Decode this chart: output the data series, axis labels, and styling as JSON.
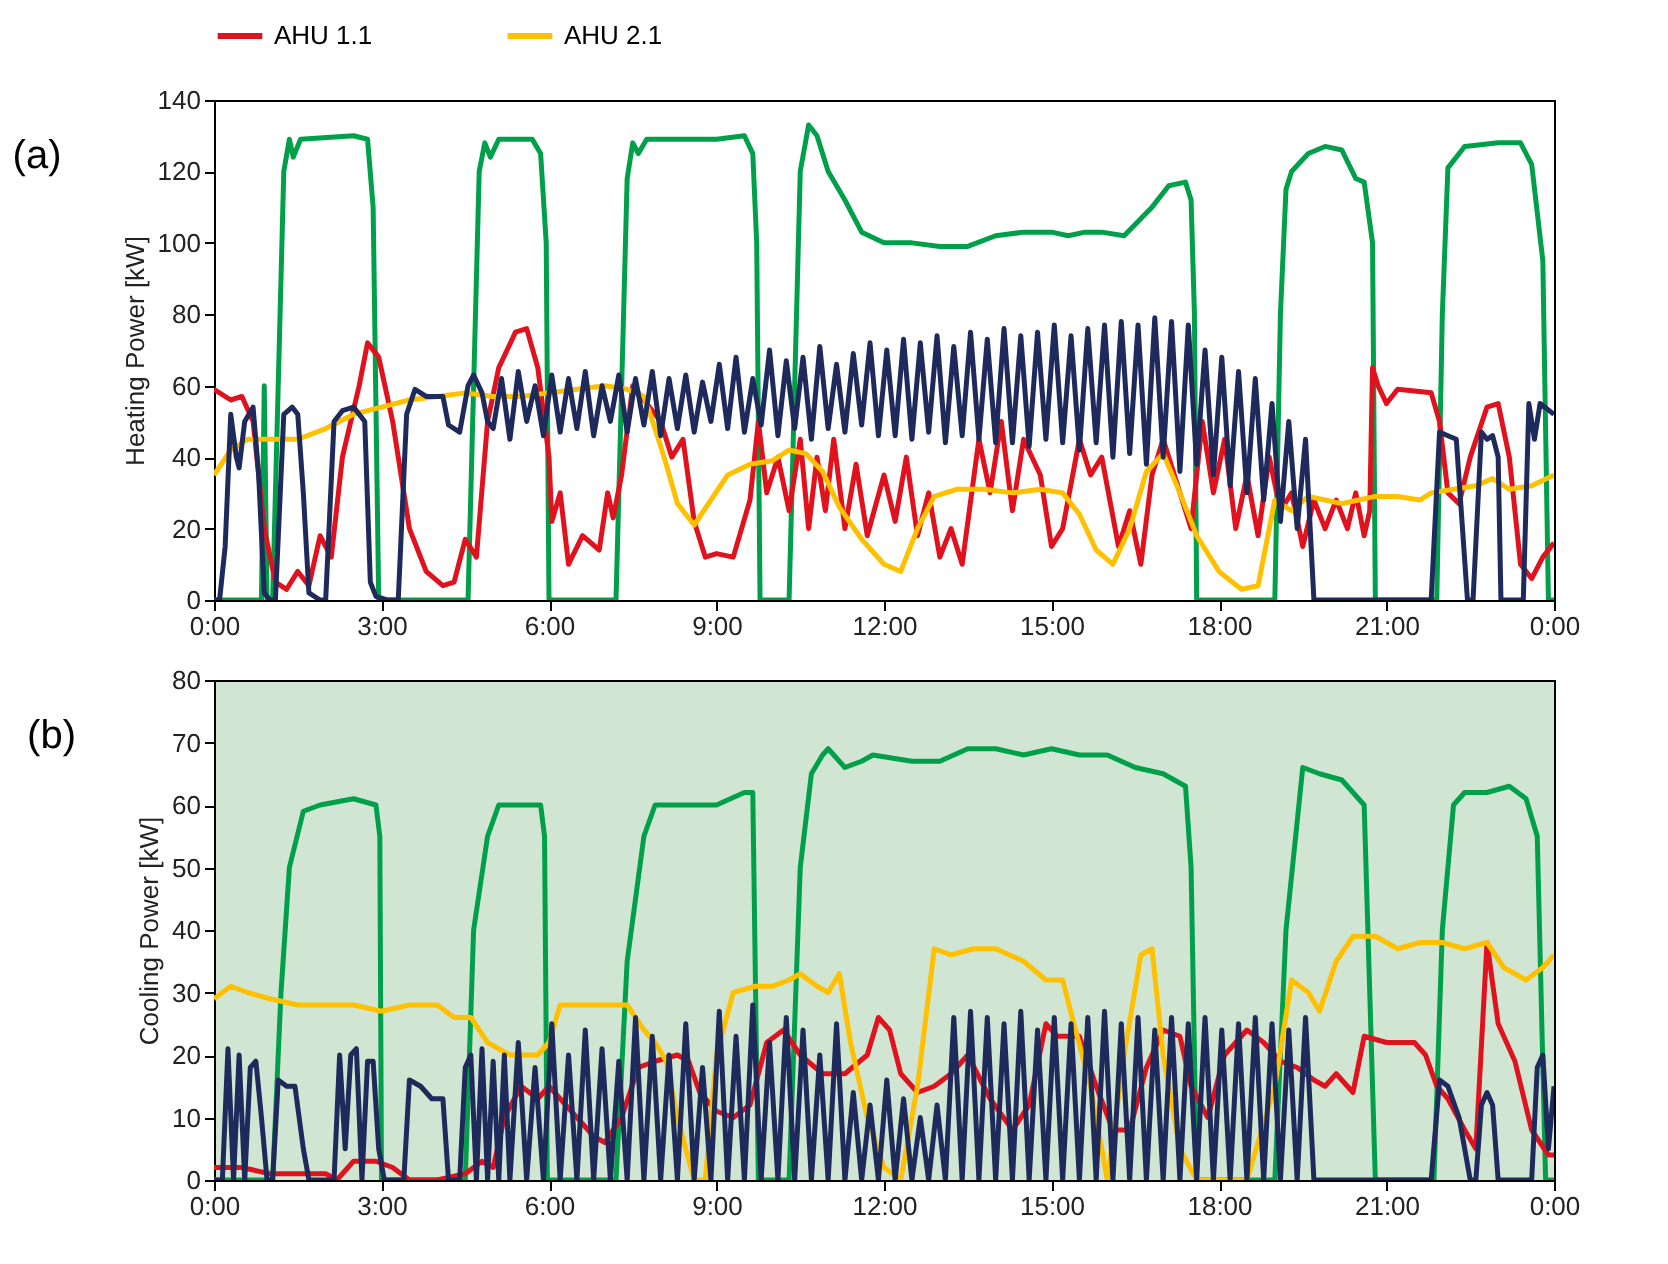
{
  "chart_data": [
    {
      "type": "line",
      "title": "(a)",
      "ylabel": "Heating Power [kW]",
      "legend": "top",
      "grid": false,
      "xlim": [
        0,
        24
      ],
      "ylim": [
        0,
        140
      ],
      "yticks": [
        0,
        20,
        40,
        60,
        80,
        100,
        120,
        140
      ],
      "xticks": [
        {
          "value": 0,
          "label": "0:00"
        },
        {
          "value": 3,
          "label": "3:00"
        },
        {
          "value": 6,
          "label": "6:00"
        },
        {
          "value": 9,
          "label": "9:00"
        },
        {
          "value": 12,
          "label": "12:00"
        },
        {
          "value": 15,
          "label": "15:00"
        },
        {
          "value": 18,
          "label": "18:00"
        },
        {
          "value": 21,
          "label": "21:00"
        },
        {
          "value": 24,
          "label": "0:00"
        }
      ],
      "series": [
        {
          "color": "#00a04a",
          "x": [
            0,
            0.85,
            0.9,
            0.95,
            1.05,
            1.25,
            1.35,
            1.42,
            1.55,
            2.5,
            2.75,
            2.85,
            2.95,
            4.55,
            4.75,
            4.85,
            4.95,
            5.1,
            5.7,
            5.85,
            5.95,
            6.0,
            7.2,
            7.4,
            7.5,
            7.6,
            7.75,
            9.0,
            9.5,
            9.65,
            9.72,
            9.78,
            10.3,
            10.5,
            10.65,
            10.8,
            11.0,
            11.3,
            11.6,
            12.0,
            12.5,
            13.0,
            13.5,
            14.0,
            14.5,
            15.0,
            15.3,
            15.6,
            15.9,
            16.3,
            16.8,
            17.1,
            17.4,
            17.5,
            17.56,
            17.6,
            19.0,
            19.1,
            19.2,
            19.3,
            19.6,
            19.9,
            20.2,
            20.45,
            20.6,
            20.75,
            20.8,
            21.9,
            22.0,
            22.1,
            22.4,
            23.0,
            23.4,
            23.6,
            23.8,
            23.9,
            24
          ],
          "values": [
            0,
            0,
            60,
            0,
            0,
            120,
            129,
            124,
            129,
            130,
            129,
            110,
            0,
            0,
            120,
            128,
            124,
            129,
            129,
            125,
            100,
            0,
            0,
            118,
            128,
            125,
            129,
            129,
            130,
            125,
            100,
            0,
            0,
            120,
            133,
            130,
            120,
            112,
            103,
            100,
            100,
            99,
            99,
            102,
            103,
            103,
            102,
            103,
            103,
            102,
            110,
            116,
            117,
            112,
            80,
            0,
            0,
            80,
            115,
            120,
            125,
            127,
            126,
            118,
            117,
            100,
            0,
            0,
            80,
            121,
            127,
            128,
            128,
            122,
            95,
            0,
            0
          ]
        },
        {
          "name": "AHU 1.1",
          "color": "#e0121e",
          "x": [
            0,
            0.3,
            0.5,
            0.7,
            0.9,
            1.1,
            1.3,
            1.5,
            1.7,
            1.9,
            2.1,
            2.3,
            2.6,
            2.75,
            2.95,
            3.2,
            3.5,
            3.8,
            4.1,
            4.3,
            4.5,
            4.7,
            4.9,
            5.1,
            5.4,
            5.6,
            5.8,
            6.0,
            6.05,
            6.2,
            6.35,
            6.6,
            6.9,
            7.05,
            7.15,
            7.3,
            7.5,
            7.75,
            8.0,
            8.2,
            8.4,
            8.6,
            8.8,
            9.0,
            9.3,
            9.6,
            9.75,
            9.9,
            10.1,
            10.3,
            10.5,
            10.65,
            10.8,
            10.95,
            11.1,
            11.3,
            11.5,
            11.7,
            12.0,
            12.2,
            12.4,
            12.6,
            12.8,
            13.0,
            13.2,
            13.4,
            13.7,
            13.9,
            14.1,
            14.3,
            14.5,
            14.8,
            15.0,
            15.2,
            15.5,
            15.7,
            15.9,
            16.2,
            16.4,
            16.6,
            16.8,
            17.0,
            17.2,
            17.5,
            17.7,
            17.9,
            18.1,
            18.3,
            18.5,
            18.7,
            18.9,
            19.1,
            19.3,
            19.5,
            19.7,
            19.9,
            20.1,
            20.3,
            20.45,
            20.6,
            20.7,
            20.75,
            20.85,
            21.0,
            21.2,
            21.8,
            21.95,
            22.1,
            22.3,
            22.5,
            22.8,
            23.0,
            23.2,
            23.4,
            23.6,
            23.8,
            24
          ],
          "values": [
            59,
            56,
            57,
            50,
            20,
            5,
            3,
            8,
            4,
            18,
            12,
            40,
            60,
            72,
            68,
            50,
            20,
            8,
            4,
            5,
            17,
            12,
            50,
            65,
            75,
            76,
            65,
            40,
            22,
            30,
            10,
            18,
            14,
            30,
            23,
            35,
            60,
            55,
            50,
            40,
            45,
            22,
            12,
            13,
            12,
            28,
            50,
            30,
            40,
            25,
            45,
            20,
            40,
            25,
            45,
            20,
            38,
            18,
            35,
            22,
            40,
            18,
            30,
            12,
            20,
            10,
            45,
            30,
            50,
            25,
            45,
            35,
            15,
            20,
            45,
            35,
            40,
            15,
            25,
            10,
            35,
            45,
            35,
            20,
            50,
            30,
            45,
            20,
            35,
            18,
            40,
            25,
            30,
            15,
            28,
            20,
            28,
            20,
            30,
            18,
            25,
            65,
            60,
            55,
            59,
            58,
            50,
            30,
            27,
            40,
            54,
            55,
            40,
            10,
            6,
            12,
            16
          ]
        },
        {
          "name": "AHU 2.1",
          "color": "#ffc000",
          "x": [
            0,
            0.3,
            0.6,
            1.0,
            1.5,
            2.0,
            2.5,
            3.0,
            3.5,
            4.0,
            4.5,
            5.0,
            5.5,
            6.0,
            6.5,
            7.0,
            7.4,
            7.7,
            7.9,
            8.1,
            8.3,
            8.6,
            8.9,
            9.2,
            9.6,
            10.0,
            10.3,
            10.6,
            10.9,
            11.2,
            11.6,
            12.0,
            12.3,
            12.6,
            12.9,
            13.3,
            13.8,
            14.3,
            14.8,
            15.2,
            15.5,
            15.8,
            16.1,
            16.4,
            16.7,
            17.0,
            17.3,
            17.6,
            18.0,
            18.4,
            18.7,
            19.0,
            19.3,
            19.6,
            19.9,
            20.2,
            20.5,
            20.8,
            21.2,
            21.6,
            21.8,
            22.2,
            22.6,
            22.9,
            23.2,
            23.6,
            24
          ],
          "values": [
            35,
            42,
            45,
            45,
            45,
            48,
            52,
            54,
            56,
            57,
            58,
            57,
            57,
            58,
            59,
            60,
            59,
            57,
            48,
            38,
            27,
            21,
            28,
            35,
            38,
            39,
            42,
            41,
            36,
            26,
            17,
            10,
            8,
            20,
            29,
            31,
            31,
            30,
            31,
            30,
            24,
            14,
            10,
            20,
            36,
            41,
            30,
            18,
            8,
            3,
            4,
            28,
            25,
            29,
            28,
            27,
            28,
            29,
            29,
            28,
            30,
            31,
            32,
            34,
            31,
            32,
            35
          ]
        },
        {
          "color": "#1f2a5c",
          "x": [
            0,
            0.1,
            0.2,
            0.3,
            0.4,
            0.45,
            0.55,
            0.7,
            0.8,
            0.9,
            1.0,
            1.1,
            1.25,
            1.4,
            1.5,
            1.6,
            1.7,
            1.9,
            2.0,
            2.15,
            2.3,
            2.5,
            2.7,
            2.8,
            2.9,
            3.1,
            3.3,
            3.45,
            3.6,
            3.8,
            4.1,
            4.2,
            4.4,
            4.55,
            4.65,
            4.8,
            4.9,
            5.0,
            5.15,
            5.3,
            5.45,
            5.6,
            5.75,
            5.9,
            6.05,
            6.2,
            6.35,
            6.5,
            6.65,
            6.8,
            6.95,
            7.1,
            7.25,
            7.4,
            7.55,
            7.7,
            7.85,
            8.0,
            8.15,
            8.3,
            8.45,
            8.6,
            8.75,
            8.9,
            9.05,
            9.2,
            9.35,
            9.5,
            9.65,
            9.8,
            9.95,
            10.1,
            10.25,
            10.4,
            10.55,
            10.7,
            10.85,
            11.0,
            11.15,
            11.3,
            11.45,
            11.6,
            11.75,
            11.9,
            12.05,
            12.2,
            12.35,
            12.5,
            12.65,
            12.8,
            12.95,
            13.1,
            13.25,
            13.4,
            13.55,
            13.7,
            13.85,
            14.0,
            14.15,
            14.3,
            14.45,
            14.6,
            14.75,
            14.9,
            15.05,
            15.2,
            15.35,
            15.5,
            15.65,
            15.8,
            15.95,
            16.1,
            16.25,
            16.4,
            16.55,
            16.7,
            16.85,
            17.0,
            17.15,
            17.3,
            17.45,
            17.6,
            17.75,
            17.9,
            18.05,
            18.2,
            18.35,
            18.5,
            18.65,
            18.8,
            18.95,
            19.1,
            19.25,
            19.4,
            19.55,
            19.7,
            21.8,
            21.95,
            22.1,
            22.25,
            22.45,
            22.55,
            22.7,
            22.8,
            22.9,
            23.0,
            23.05,
            23.45,
            23.55,
            23.65,
            23.75,
            24
          ],
          "values": [
            0,
            0,
            15,
            52,
            40,
            37,
            50,
            54,
            35,
            2,
            0,
            0,
            52,
            54,
            52,
            30,
            2,
            0,
            0,
            50,
            53,
            54,
            50,
            5,
            1,
            0,
            0,
            52,
            59,
            57,
            57,
            49,
            47,
            60,
            63,
            58,
            50,
            48,
            62,
            45,
            64,
            50,
            60,
            46,
            63,
            47,
            62,
            48,
            64,
            46,
            60,
            50,
            63,
            47,
            62,
            49,
            64,
            46,
            62,
            48,
            63,
            47,
            61,
            50,
            66,
            48,
            68,
            47,
            62,
            49,
            70,
            46,
            67,
            48,
            68,
            45,
            71,
            48,
            66,
            47,
            69,
            49,
            72,
            46,
            70,
            46,
            73,
            45,
            72,
            47,
            74,
            44,
            71,
            46,
            75,
            45,
            73,
            44,
            76,
            44,
            74,
            43,
            75,
            45,
            77,
            44,
            74,
            42,
            76,
            44,
            77,
            40,
            78,
            41,
            77,
            38,
            79,
            40,
            78,
            36,
            77,
            38,
            70,
            35,
            68,
            32,
            64,
            30,
            62,
            28,
            55,
            22,
            50,
            20,
            45,
            0,
            0,
            47,
            46,
            45,
            0,
            0,
            47,
            45,
            46,
            40,
            0,
            0,
            55,
            45,
            55,
            52
          ]
        }
      ]
    },
    {
      "type": "line",
      "title": "(b)",
      "ylabel": "Cooling Power [kW]",
      "grid": false,
      "xlim": [
        0,
        24
      ],
      "ylim": [
        0,
        80
      ],
      "yticks": [
        0,
        10,
        20,
        30,
        40,
        50,
        60,
        70,
        80
      ],
      "xticks": [
        {
          "value": 0,
          "label": "0:00"
        },
        {
          "value": 3,
          "label": "3:00"
        },
        {
          "value": 6,
          "label": "6:00"
        },
        {
          "value": 9,
          "label": "9:00"
        },
        {
          "value": 12,
          "label": "12:00"
        },
        {
          "value": 15,
          "label": "15:00"
        },
        {
          "value": 18,
          "label": "18:00"
        },
        {
          "value": 21,
          "label": "21:00"
        },
        {
          "value": 24,
          "label": "0:00"
        }
      ],
      "series": [
        {
          "color": "#00a04a",
          "x": [
            0,
            1.05,
            1.2,
            1.35,
            1.6,
            1.9,
            2.5,
            2.9,
            2.97,
            3.0,
            4.5,
            4.65,
            4.9,
            5.1,
            5.5,
            5.85,
            5.92,
            5.97,
            7.2,
            7.4,
            7.7,
            7.9,
            8.5,
            9.0,
            9.5,
            9.65,
            9.7,
            9.75,
            10.3,
            10.5,
            10.7,
            10.9,
            11.0,
            11.3,
            11.6,
            11.8,
            12.5,
            13.0,
            13.5,
            14.0,
            14.5,
            15.0,
            15.5,
            16.0,
            16.5,
            17.0,
            17.4,
            17.5,
            17.6,
            19.0,
            19.2,
            19.5,
            19.8,
            20.2,
            20.6,
            20.7,
            20.8,
            21.85,
            22.0,
            22.2,
            22.4,
            22.8,
            23.2,
            23.5,
            23.7,
            23.85,
            24
          ],
          "values": [
            0,
            0,
            30,
            50,
            59,
            60,
            61,
            60,
            55,
            0,
            0,
            40,
            55,
            60,
            60,
            60,
            55,
            0,
            0,
            35,
            55,
            60,
            60,
            60,
            62,
            62,
            30,
            0,
            0,
            50,
            65,
            68,
            69,
            66,
            67,
            68,
            67,
            67,
            69,
            69,
            68,
            69,
            68,
            68,
            66,
            65,
            63,
            50,
            0,
            0,
            40,
            66,
            65,
            64,
            60,
            30,
            0,
            0,
            40,
            60,
            62,
            62,
            63,
            61,
            55,
            0,
            0
          ]
        },
        {
          "name": "AHU 1.1",
          "color": "#e0121e",
          "x": [
            0,
            0.5,
            1.0,
            1.5,
            2.0,
            2.2,
            2.5,
            2.9,
            3.2,
            3.5,
            4.0,
            4.5,
            4.8,
            5.0,
            5.2,
            5.5,
            5.8,
            6.0,
            6.5,
            6.8,
            7.0,
            7.3,
            7.6,
            7.9,
            8.3,
            8.5,
            8.7,
            9.0,
            9.3,
            9.6,
            9.9,
            10.2,
            10.5,
            10.9,
            11.3,
            11.7,
            11.9,
            12.1,
            12.3,
            12.6,
            12.9,
            13.2,
            13.5,
            13.9,
            14.3,
            14.6,
            14.9,
            15.1,
            15.5,
            15.8,
            16.1,
            16.4,
            16.7,
            17.0,
            17.3,
            17.5,
            17.8,
            18.1,
            18.5,
            18.8,
            19.1,
            19.4,
            19.7,
            19.9,
            20.1,
            20.4,
            20.6,
            21.0,
            21.5,
            21.7,
            21.9,
            22.1,
            22.4,
            22.6,
            22.8,
            23.0,
            23.3,
            23.6,
            23.9,
            24
          ],
          "values": [
            2,
            2,
            1,
            1,
            1,
            0,
            3,
            3,
            2,
            0,
            0,
            1,
            3,
            2,
            10,
            15,
            13,
            15,
            10,
            7,
            6,
            10,
            18,
            19,
            20,
            19,
            14,
            11,
            10,
            12,
            22,
            24,
            20,
            17,
            17,
            20,
            26,
            24,
            17,
            14,
            15,
            17,
            20,
            13,
            8,
            12,
            25,
            23,
            23,
            15,
            8,
            8,
            18,
            24,
            23,
            15,
            10,
            20,
            24,
            22,
            19,
            18,
            16,
            15,
            17,
            14,
            23,
            22,
            22,
            20,
            15,
            13,
            8,
            5,
            38,
            25,
            19,
            8,
            4,
            4
          ]
        },
        {
          "name": "AHU 2.1",
          "color": "#ffc000",
          "x": [
            0,
            0.3,
            0.6,
            1.0,
            1.5,
            2.0,
            2.5,
            3.0,
            3.5,
            4.0,
            4.3,
            4.6,
            4.9,
            5.3,
            5.8,
            6.0,
            6.2,
            6.6,
            7.0,
            7.4,
            7.7,
            7.9,
            8.1,
            8.3,
            8.6,
            8.8,
            9.0,
            9.3,
            9.7,
            10.0,
            10.3,
            10.5,
            10.8,
            11.0,
            11.2,
            11.4,
            11.7,
            12.0,
            12.3,
            12.6,
            12.9,
            13.2,
            13.6,
            14.0,
            14.5,
            14.9,
            15.2,
            15.4,
            15.7,
            16.0,
            16.3,
            16.6,
            16.8,
            17.0,
            17.3,
            17.6,
            18.0,
            18.5,
            19.0,
            19.3,
            19.6,
            19.8,
            20.1,
            20.4,
            20.8,
            21.2,
            21.6,
            22.0,
            22.4,
            22.8,
            23.1,
            23.5,
            23.8,
            24
          ],
          "values": [
            29,
            31,
            30,
            29,
            28,
            28,
            28,
            27,
            28,
            28,
            26,
            26,
            22,
            20,
            20,
            22,
            28,
            28,
            28,
            28,
            24,
            22,
            19,
            10,
            0,
            0,
            20,
            30,
            31,
            31,
            32,
            33,
            31,
            30,
            33,
            22,
            10,
            2,
            0,
            15,
            37,
            36,
            37,
            37,
            35,
            32,
            32,
            25,
            15,
            0,
            20,
            36,
            37,
            20,
            5,
            0,
            0,
            0,
            15,
            32,
            30,
            27,
            35,
            39,
            39,
            37,
            38,
            38,
            37,
            38,
            34,
            32,
            34,
            36
          ]
        },
        {
          "color": "#1f2a5c",
          "x": [
            0,
            0.15,
            0.25,
            0.35,
            0.45,
            0.55,
            0.65,
            0.75,
            0.85,
            0.95,
            1.05,
            1.15,
            1.3,
            1.45,
            1.6,
            1.7,
            2.15,
            2.25,
            2.35,
            2.45,
            2.55,
            2.65,
            2.75,
            2.85,
            2.95,
            3.05,
            3.4,
            3.5,
            3.7,
            3.9,
            4.1,
            4.2,
            4.4,
            4.5,
            4.6,
            4.7,
            4.8,
            4.9,
            5.0,
            5.1,
            5.2,
            5.3,
            5.45,
            5.6,
            5.75,
            5.9,
            6.05,
            6.2,
            6.35,
            6.5,
            6.65,
            6.8,
            6.95,
            7.1,
            7.25,
            7.4,
            7.55,
            7.7,
            7.85,
            8.0,
            8.15,
            8.3,
            8.45,
            8.6,
            8.75,
            8.9,
            9.05,
            9.2,
            9.35,
            9.5,
            9.65,
            9.8,
            9.95,
            10.1,
            10.25,
            10.4,
            10.55,
            10.7,
            10.85,
            11.0,
            11.15,
            11.3,
            11.45,
            11.6,
            11.75,
            11.9,
            12.05,
            12.2,
            12.35,
            12.5,
            12.65,
            12.8,
            12.95,
            13.1,
            13.25,
            13.4,
            13.55,
            13.7,
            13.85,
            14.0,
            14.15,
            14.3,
            14.45,
            14.6,
            14.75,
            14.9,
            15.05,
            15.2,
            15.35,
            15.5,
            15.65,
            15.8,
            15.95,
            16.1,
            16.25,
            16.4,
            16.55,
            16.7,
            16.85,
            17.0,
            17.15,
            17.3,
            17.45,
            17.6,
            17.75,
            17.9,
            18.05,
            18.2,
            18.35,
            18.5,
            18.65,
            18.8,
            18.95,
            19.1,
            19.25,
            19.4,
            19.55,
            19.7,
            21.8,
            21.95,
            22.1,
            22.3,
            22.5,
            22.6,
            22.7,
            22.8,
            22.9,
            23.0,
            23.6,
            23.7,
            23.8,
            23.9,
            24
          ],
          "values": [
            0,
            0,
            21,
            0,
            20,
            0,
            18,
            19,
            10,
            0,
            0,
            16,
            15,
            15,
            5,
            0,
            0,
            20,
            5,
            20,
            21,
            0,
            19,
            19,
            5,
            0,
            0,
            16,
            15,
            13,
            13,
            0,
            0,
            18,
            20,
            0,
            21,
            0,
            19,
            0,
            20,
            0,
            22,
            0,
            18,
            0,
            25,
            0,
            20,
            0,
            24,
            0,
            21,
            0,
            19,
            0,
            26,
            0,
            23,
            0,
            20,
            0,
            25,
            0,
            18,
            0,
            27,
            0,
            23,
            0,
            28,
            0,
            22,
            0,
            26,
            0,
            24,
            0,
            20,
            0,
            25,
            0,
            14,
            0,
            12,
            0,
            16,
            0,
            13,
            0,
            10,
            0,
            12,
            0,
            26,
            0,
            27,
            0,
            26,
            0,
            25,
            0,
            27,
            0,
            24,
            0,
            26,
            0,
            25,
            0,
            26,
            0,
            27,
            0,
            25,
            0,
            26,
            0,
            24,
            0,
            26,
            0,
            25,
            0,
            26,
            0,
            24,
            0,
            25,
            0,
            26,
            0,
            25,
            0,
            24,
            0,
            26,
            0,
            0,
            16,
            15,
            10,
            0,
            0,
            12,
            14,
            12,
            0,
            0,
            18,
            20,
            5,
            15
          ]
        }
      ]
    }
  ]
}
